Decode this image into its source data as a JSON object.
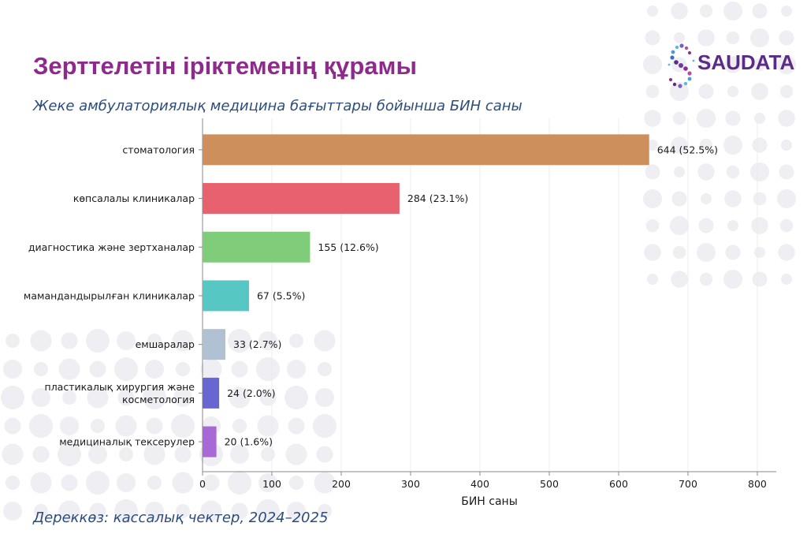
{
  "header": {
    "title": "Зерттелетін іріктеменің құрамы",
    "subtitle": "Жеке амбулаториялық медицина бағыттары бойынша БИН саны"
  },
  "footer": {
    "source": "Дереккөз: кассалық чектер, 2024–2025"
  },
  "logo": {
    "text": "SAUDATA",
    "icon": "saudata-dots-s-logo-icon"
  },
  "chart_data": {
    "type": "bar",
    "orientation": "horizontal",
    "categories": [
      "стоматология",
      "көпсалалы клиникалар",
      "диагностика және зертханалар",
      "мамандандырылған клиникалар",
      "емшаралар",
      "пластикалық хирургия және косметология",
      "медициналық тексерулер"
    ],
    "category_lines": [
      [
        "стоматология"
      ],
      [
        "көпсалалы клиникалар"
      ],
      [
        "диагностика және зертханалар"
      ],
      [
        "мамандандырылған клиникалар"
      ],
      [
        "емшаралар"
      ],
      [
        "пластикалық хирургия және",
        "косметология"
      ],
      [
        "медициналық тексерулер"
      ]
    ],
    "values": [
      644,
      284,
      155,
      67,
      33,
      24,
      20
    ],
    "value_labels": [
      "644 (52.5%)",
      "284 (23.1%)",
      "155 (12.6%)",
      "67 (5.5%)",
      "33 (2.7%)",
      "24 (2.0%)",
      "20 (1.6%)"
    ],
    "colors": [
      "#cd8f5b",
      "#e8616f",
      "#7fcd7a",
      "#57c7c4",
      "#b0c1d4",
      "#6866d1",
      "#a868d6"
    ],
    "xlabel": "БИН саны",
    "ylabel": "",
    "xlim": [
      0,
      800
    ],
    "xticks": [
      0,
      100,
      200,
      300,
      400,
      500,
      600,
      700,
      800
    ],
    "grid": "vertical"
  }
}
